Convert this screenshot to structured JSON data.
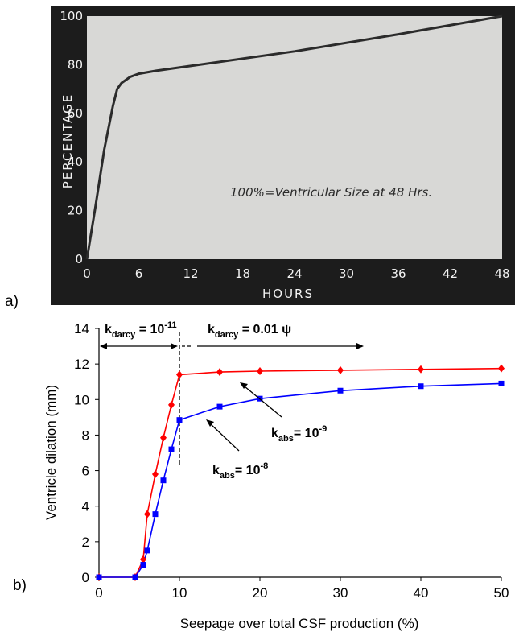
{
  "panel_a_label": "a)",
  "panel_b_label": "b)",
  "chart_data": [
    {
      "type": "line",
      "xlabel": "HOURS",
      "ylabel": "PERCENTAGE",
      "annotation": "100%=Ventricular Size at 48 Hrs.",
      "xlim": [
        0,
        48
      ],
      "ylim": [
        0,
        100
      ],
      "x_ticks": [
        0,
        6,
        12,
        18,
        24,
        30,
        36,
        42,
        48
      ],
      "y_ticks": [
        0,
        20,
        40,
        60,
        80,
        100
      ],
      "grid": false,
      "colors": {
        "background": "#1c1c1c",
        "plot": "#d8d8d6",
        "curve": "#2b2b2b",
        "text": "#f2f2f2"
      },
      "series": [
        {
          "x": [
            0,
            1,
            2,
            3,
            3.5,
            4,
            5,
            6,
            8,
            12,
            24,
            36,
            48
          ],
          "y": [
            0,
            22,
            45,
            63,
            70,
            72.5,
            75,
            76.3,
            77.5,
            79.5,
            85.5,
            92.5,
            100
          ]
        }
      ]
    },
    {
      "type": "line",
      "xlabel": "Seepage over total CSF production (%)",
      "ylabel": "Ventricle dilation (mm)",
      "xlim": [
        0,
        50
      ],
      "ylim": [
        0,
        14
      ],
      "x_ticks": [
        0,
        10,
        20,
        30,
        40,
        50
      ],
      "y_ticks": [
        0,
        2,
        4,
        6,
        8,
        10,
        12,
        14
      ],
      "grid": false,
      "divider_x": 10,
      "series": [
        {
          "label": "k_abs = 10^-9",
          "label_parts": [
            "k",
            "abs",
            "= 10",
            "-9"
          ],
          "color": "#ff0000",
          "marker": "diamond",
          "x": [
            0,
            4.5,
            5.5,
            6,
            7,
            8,
            9,
            10,
            15,
            20,
            30,
            40,
            50
          ],
          "y": [
            0,
            0,
            1,
            3.55,
            5.8,
            7.85,
            9.7,
            11.4,
            11.55,
            11.6,
            11.65,
            11.7,
            11.75
          ]
        },
        {
          "label": "k_abs = 10^-8",
          "label_parts": [
            "k",
            "abs",
            "= 10",
            "-8"
          ],
          "color": "#0000ff",
          "marker": "square",
          "x": [
            0,
            4.5,
            5.5,
            6,
            7,
            8,
            9,
            10,
            15,
            20,
            30,
            40,
            50
          ],
          "y": [
            0,
            0,
            0.7,
            1.5,
            3.55,
            5.45,
            7.2,
            8.85,
            9.6,
            10.05,
            10.5,
            10.75,
            10.9
          ]
        }
      ],
      "region_labels": [
        {
          "label": "k_darcy = 10^-11",
          "parts": [
            "k",
            "darcy",
            " = 10",
            "-11"
          ]
        },
        {
          "label": "k_darcy = 0.01 ψ",
          "parts": [
            "k",
            "darcy",
            " = 0.01 ψ",
            ""
          ]
        }
      ]
    }
  ]
}
